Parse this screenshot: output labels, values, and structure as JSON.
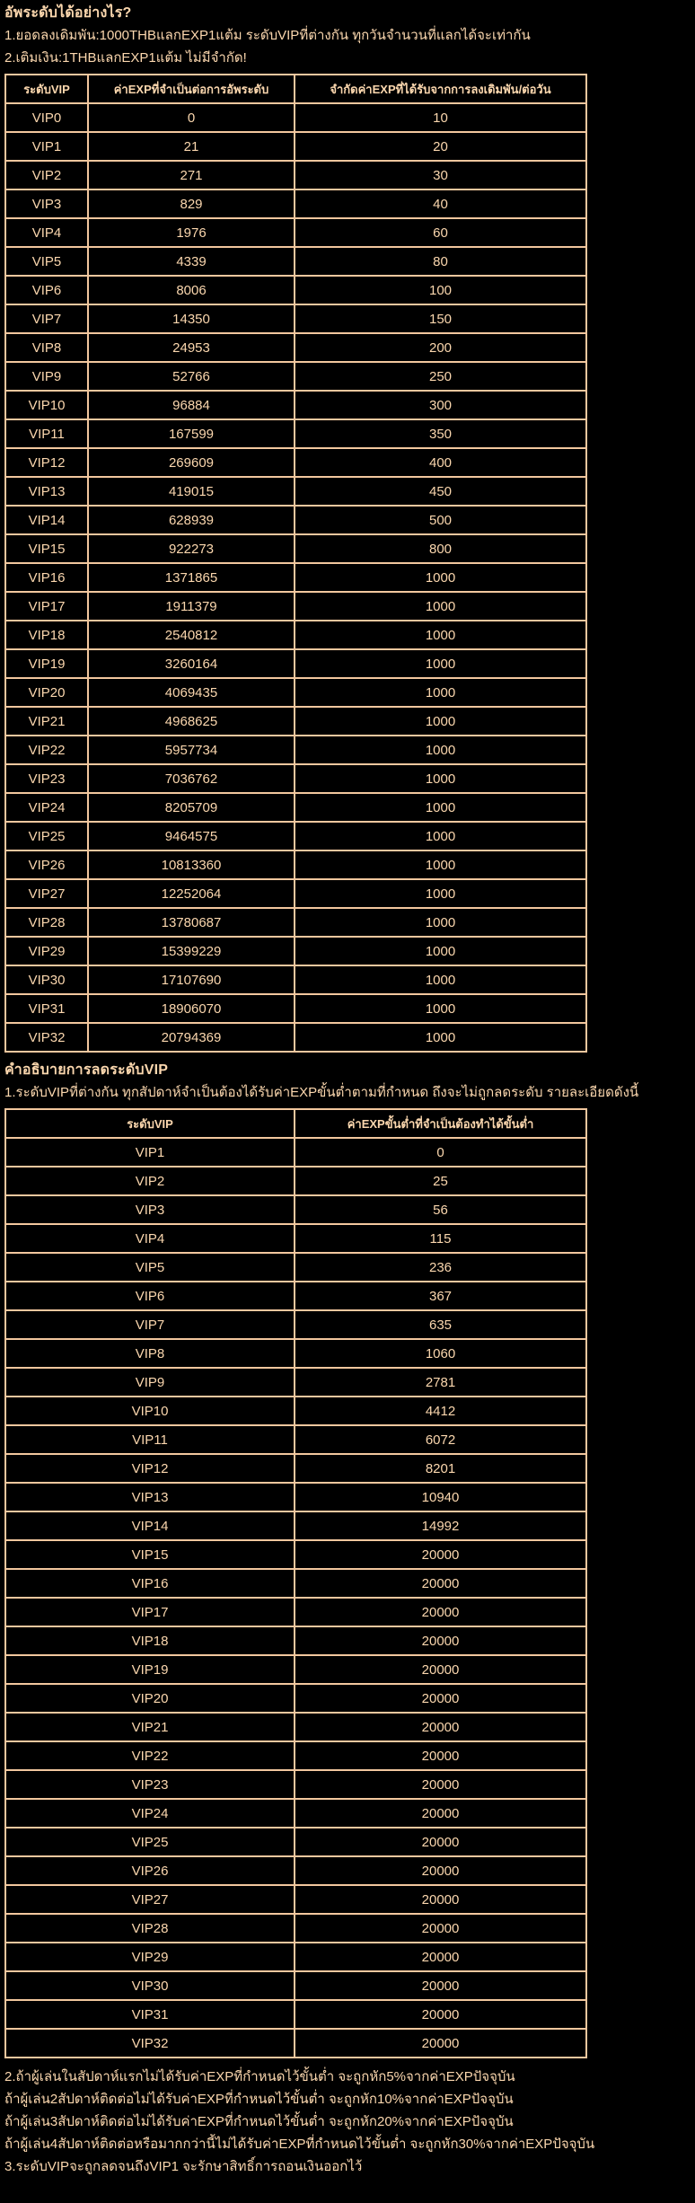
{
  "page": {
    "bg_color": "#000000",
    "text_color": "#FBD7AE",
    "border_color": "#F2C79E"
  },
  "intro": {
    "heading": "อัพระดับได้อย่างไร?",
    "lines": [
      "1.ยอดลงเดิมพัน:1000THBแลกEXP1แต้ม ระดับVIPที่ต่างกัน ทุกวันจำนวนที่แลกได้จะเท่ากัน",
      "2.เติมเงิน:1THBแลกEXP1แต้ม ไม่มีจำกัด!"
    ]
  },
  "upgrade_table": {
    "headers": [
      "ระดับVIP",
      "ค่าEXPที่จำเป็นต่อการอัพระดับ",
      "จำกัดค่าEXPที่ได้รับจากการลงเดิมพัน/ต่อวัน"
    ],
    "rows": [
      [
        "VIP0",
        "0",
        "10"
      ],
      [
        "VIP1",
        "21",
        "20"
      ],
      [
        "VIP2",
        "271",
        "30"
      ],
      [
        "VIP3",
        "829",
        "40"
      ],
      [
        "VIP4",
        "1976",
        "60"
      ],
      [
        "VIP5",
        "4339",
        "80"
      ],
      [
        "VIP6",
        "8006",
        "100"
      ],
      [
        "VIP7",
        "14350",
        "150"
      ],
      [
        "VIP8",
        "24953",
        "200"
      ],
      [
        "VIP9",
        "52766",
        "250"
      ],
      [
        "VIP10",
        "96884",
        "300"
      ],
      [
        "VIP11",
        "167599",
        "350"
      ],
      [
        "VIP12",
        "269609",
        "400"
      ],
      [
        "VIP13",
        "419015",
        "450"
      ],
      [
        "VIP14",
        "628939",
        "500"
      ],
      [
        "VIP15",
        "922273",
        "800"
      ],
      [
        "VIP16",
        "1371865",
        "1000"
      ],
      [
        "VIP17",
        "1911379",
        "1000"
      ],
      [
        "VIP18",
        "2540812",
        "1000"
      ],
      [
        "VIP19",
        "3260164",
        "1000"
      ],
      [
        "VIP20",
        "4069435",
        "1000"
      ],
      [
        "VIP21",
        "4968625",
        "1000"
      ],
      [
        "VIP22",
        "5957734",
        "1000"
      ],
      [
        "VIP23",
        "7036762",
        "1000"
      ],
      [
        "VIP24",
        "8205709",
        "1000"
      ],
      [
        "VIP25",
        "9464575",
        "1000"
      ],
      [
        "VIP26",
        "10813360",
        "1000"
      ],
      [
        "VIP27",
        "12252064",
        "1000"
      ],
      [
        "VIP28",
        "13780687",
        "1000"
      ],
      [
        "VIP29",
        "15399229",
        "1000"
      ],
      [
        "VIP30",
        "17107690",
        "1000"
      ],
      [
        "VIP31",
        "18906070",
        "1000"
      ],
      [
        "VIP32",
        "20794369",
        "1000"
      ]
    ]
  },
  "demotion": {
    "heading": "คำอธิบายการลดระดับVIP",
    "lines": [
      "1.ระดับVIPที่ต่างกัน ทุกสัปดาห์จำเป็นต้องได้รับค่าEXPขั้นต่ำตามที่กำหนด ถึงจะไม่ถูกลดระดับ รายละเอียดดังนี้"
    ]
  },
  "retention_table": {
    "headers": [
      "ระดับVIP",
      "ค่าEXPขั้นต่ำที่จำเป็นต้องทำได้ขั้นต่ำ"
    ],
    "rows": [
      [
        "VIP1",
        "0"
      ],
      [
        "VIP2",
        "25"
      ],
      [
        "VIP3",
        "56"
      ],
      [
        "VIP4",
        "115"
      ],
      [
        "VIP5",
        "236"
      ],
      [
        "VIP6",
        "367"
      ],
      [
        "VIP7",
        "635"
      ],
      [
        "VIP8",
        "1060"
      ],
      [
        "VIP9",
        "2781"
      ],
      [
        "VIP10",
        "4412"
      ],
      [
        "VIP11",
        "6072"
      ],
      [
        "VIP12",
        "8201"
      ],
      [
        "VIP13",
        "10940"
      ],
      [
        "VIP14",
        "14992"
      ],
      [
        "VIP15",
        "20000"
      ],
      [
        "VIP16",
        "20000"
      ],
      [
        "VIP17",
        "20000"
      ],
      [
        "VIP18",
        "20000"
      ],
      [
        "VIP19",
        "20000"
      ],
      [
        "VIP20",
        "20000"
      ],
      [
        "VIP21",
        "20000"
      ],
      [
        "VIP22",
        "20000"
      ],
      [
        "VIP23",
        "20000"
      ],
      [
        "VIP24",
        "20000"
      ],
      [
        "VIP25",
        "20000"
      ],
      [
        "VIP26",
        "20000"
      ],
      [
        "VIP27",
        "20000"
      ],
      [
        "VIP28",
        "20000"
      ],
      [
        "VIP29",
        "20000"
      ],
      [
        "VIP30",
        "20000"
      ],
      [
        "VIP31",
        "20000"
      ],
      [
        "VIP32",
        "20000"
      ]
    ]
  },
  "footer": {
    "lines": [
      "2.ถ้าผู้เล่นในสัปดาห์แรกไม่ได้รับค่าEXPที่กำหนดไว้ขั้นต่ำ จะถูกหัก5%จากค่าEXPปัจจุบัน",
      "ถ้าผู้เล่น2สัปดาห์ติดต่อไม่ได้รับค่าEXPที่กำหนดไว้ขั้นต่ำ จะถูกหัก10%จากค่าEXPปัจจุบัน",
      "ถ้าผู้เล่น3สัปดาห์ติดต่อไม่ได้รับค่าEXPที่กำหนดไว้ขั้นต่ำ จะถูกหัก20%จากค่าEXPปัจจุบัน",
      "ถ้าผู้เล่น4สัปดาห์ติดต่อหรือมากกว่านี้ไม่ได้รับค่าEXPที่กำหนดไว้ขั้นต่ำ จะถูกหัก30%จากค่าEXPปัจจุบัน",
      "3.ระดับVIPจะถูกลดจนถึงVIP1 จะรักษาสิทธิ์การถอนเงินออกไว้"
    ]
  }
}
